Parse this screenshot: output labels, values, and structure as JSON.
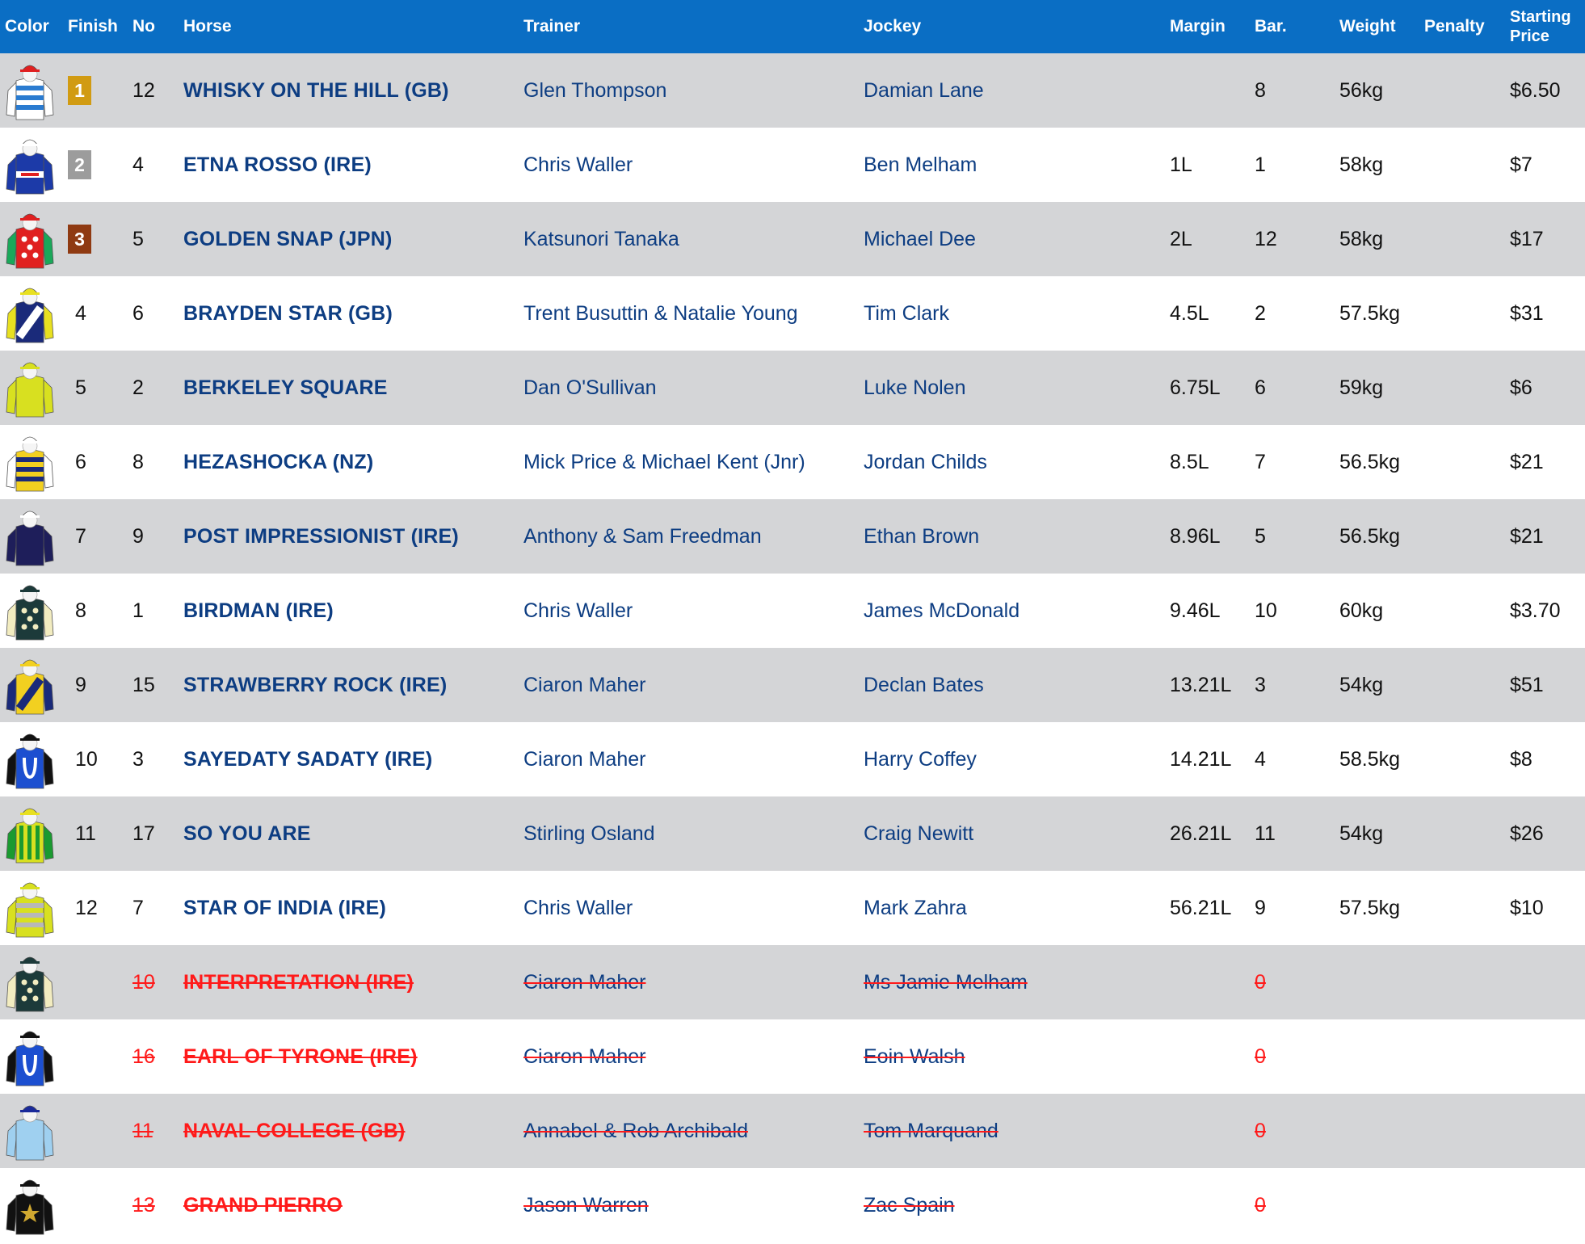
{
  "header": {
    "color": "Color",
    "finish": "Finish",
    "no": "No",
    "horse": "Horse",
    "trainer": "Trainer",
    "jockey": "Jockey",
    "margin": "Margin",
    "barrier": "Bar.",
    "weight": "Weight",
    "penalty": "Penalty",
    "starting_price_line1": "Starting",
    "starting_price_line2": "Price"
  },
  "colors": {
    "header_bg": "#0a6ec4",
    "row_grey": "#d4d5d7",
    "gold": "#d19b12",
    "silver": "#9c9c9c",
    "bronze": "#8f3a12",
    "scratched": "#ff1a1a",
    "link": "#0d3d82"
  },
  "rows": [
    {
      "finish": "1",
      "no": "12",
      "horse": "WHISKY ON THE HILL (GB)",
      "trainer": "Glen Thompson",
      "jockey": "Damian Lane",
      "margin": "",
      "barrier": "8",
      "weight": "56kg",
      "penalty": "",
      "sp": "$6.50",
      "scratched": false,
      "medal": "gold",
      "silk": {
        "icon": "silk-blue-white-hoops-icon",
        "body": "#ffffff",
        "stripe": "#2a7bd0",
        "pattern": "hoops",
        "cap": "#e02020",
        "sleeve": "#ffffff"
      }
    },
    {
      "finish": "2",
      "no": "4",
      "horse": "ETNA ROSSO (IRE)",
      "trainer": "Chris Waller",
      "jockey": "Ben Melham",
      "margin": "1L",
      "barrier": "1",
      "weight": "58kg",
      "penalty": "",
      "sp": "$7",
      "scratched": false,
      "medal": "silver",
      "silk": {
        "icon": "silk-navy-band-icon",
        "body": "#1c3aa8",
        "stripe": "#ffffff",
        "pattern": "band",
        "cap": "#ffffff",
        "sleeve": "#1c3aa8"
      }
    },
    {
      "finish": "3",
      "no": "5",
      "horse": "GOLDEN SNAP (JPN)",
      "trainer": "Katsunori Tanaka",
      "jockey": "Michael Dee",
      "margin": "2L",
      "barrier": "12",
      "weight": "58kg",
      "penalty": "",
      "sp": "$17",
      "scratched": false,
      "medal": "bronze",
      "silk": {
        "icon": "silk-red-white-spots-icon",
        "body": "#e02020",
        "stripe": "#ffffff",
        "pattern": "spots",
        "cap": "#e02020",
        "sleeve": "#1aa85a"
      }
    },
    {
      "finish": "4",
      "no": "6",
      "horse": "BRAYDEN STAR (GB)",
      "trainer": "Trent Busuttin & Natalie Young",
      "jockey": "Tim Clark",
      "margin": "4.5L",
      "barrier": "2",
      "weight": "57.5kg",
      "penalty": "",
      "sp": "$31",
      "scratched": false,
      "medal": "",
      "silk": {
        "icon": "silk-navy-white-sash-icon",
        "body": "#1a2a7a",
        "stripe": "#ffffff",
        "pattern": "sash",
        "cap": "#e8e020",
        "sleeve": "#e8e020"
      }
    },
    {
      "finish": "5",
      "no": "2",
      "horse": "BERKELEY SQUARE",
      "trainer": "Dan O'Sullivan",
      "jockey": "Luke Nolen",
      "margin": "6.75L",
      "barrier": "6",
      "weight": "59kg",
      "penalty": "",
      "sp": "$6",
      "scratched": false,
      "medal": "",
      "silk": {
        "icon": "silk-yellow-icon",
        "body": "#d8e020",
        "stripe": "#d8e020",
        "pattern": "plain",
        "cap": "#d8e020",
        "sleeve": "#d8e020"
      }
    },
    {
      "finish": "6",
      "no": "8",
      "horse": "HEZASHOCKA (NZ)",
      "trainer": "Mick Price & Michael Kent (Jnr)",
      "jockey": "Jordan Childs",
      "margin": "8.5L",
      "barrier": "7",
      "weight": "56.5kg",
      "penalty": "",
      "sp": "$21",
      "scratched": false,
      "medal": "",
      "silk": {
        "icon": "silk-navy-yellow-hoops-icon",
        "body": "#f2d020",
        "stripe": "#1a2a7a",
        "pattern": "hoops",
        "cap": "#ffffff",
        "sleeve": "#ffffff"
      }
    },
    {
      "finish": "7",
      "no": "9",
      "horse": "POST IMPRESSIONIST (IRE)",
      "trainer": "Anthony & Sam Freedman",
      "jockey": "Ethan Brown",
      "margin": "8.96L",
      "barrier": "5",
      "weight": "56.5kg",
      "penalty": "",
      "sp": "$21",
      "scratched": false,
      "medal": "",
      "silk": {
        "icon": "silk-navy-icon",
        "body": "#1e1e5a",
        "stripe": "#1e1e5a",
        "pattern": "plain",
        "cap": "#ffffff",
        "sleeve": "#1e1e5a"
      }
    },
    {
      "finish": "8",
      "no": "1",
      "horse": "BIRDMAN (IRE)",
      "trainer": "Chris Waller",
      "jockey": "James McDonald",
      "margin": "9.46L",
      "barrier": "10",
      "weight": "60kg",
      "penalty": "",
      "sp": "$3.70",
      "scratched": false,
      "medal": "",
      "silk": {
        "icon": "silk-green-cream-spots-icon",
        "body": "#1c3a3a",
        "stripe": "#f2ecc0",
        "pattern": "spots",
        "cap": "#1c3a3a",
        "sleeve": "#f2ecc0"
      }
    },
    {
      "finish": "9",
      "no": "15",
      "horse": "STRAWBERRY ROCK (IRE)",
      "trainer": "Ciaron Maher",
      "jockey": "Declan Bates",
      "margin": "13.21L",
      "barrier": "3",
      "weight": "54kg",
      "penalty": "",
      "sp": "$51",
      "scratched": false,
      "medal": "",
      "silk": {
        "icon": "silk-yellow-navy-sash-icon",
        "body": "#f2d020",
        "stripe": "#1a2a7a",
        "pattern": "sash",
        "cap": "#f2d020",
        "sleeve": "#1a2a7a"
      }
    },
    {
      "finish": "10",
      "no": "3",
      "horse": "SAYEDATY SADATY (IRE)",
      "trainer": "Ciaron Maher",
      "jockey": "Harry Coffey",
      "margin": "14.21L",
      "barrier": "4",
      "weight": "58.5kg",
      "penalty": "",
      "sp": "$8",
      "scratched": false,
      "medal": "",
      "silk": {
        "icon": "silk-blue-horseshoe-icon",
        "body": "#1c4fd0",
        "stripe": "#ffffff",
        "pattern": "horseshoe",
        "cap": "#111111",
        "sleeve": "#111111"
      }
    },
    {
      "finish": "11",
      "no": "17",
      "horse": "SO YOU ARE",
      "trainer": "Stirling Osland",
      "jockey": "Craig Newitt",
      "margin": "26.21L",
      "barrier": "11",
      "weight": "54kg",
      "penalty": "",
      "sp": "$26",
      "scratched": false,
      "medal": "",
      "silk": {
        "icon": "silk-green-yellow-stripes-icon",
        "body": "#d8e020",
        "stripe": "#1a9a30",
        "pattern": "stripes",
        "cap": "#e8e020",
        "sleeve": "#1a9a30"
      }
    },
    {
      "finish": "12",
      "no": "7",
      "horse": "STAR OF INDIA (IRE)",
      "trainer": "Chris Waller",
      "jockey": "Mark Zahra",
      "margin": "56.21L",
      "barrier": "9",
      "weight": "57.5kg",
      "penalty": "",
      "sp": "$10",
      "scratched": false,
      "medal": "",
      "silk": {
        "icon": "silk-yellow-grey-hoops-icon",
        "body": "#d8e020",
        "stripe": "#b8b8b8",
        "pattern": "hoops",
        "cap": "#d8e020",
        "sleeve": "#d8e020"
      }
    },
    {
      "finish": "",
      "no": "10",
      "horse": "INTERPRETATION (IRE)",
      "trainer": "Ciaron Maher",
      "jockey": "Ms Jamie Melham",
      "margin": "",
      "barrier": "0",
      "weight": "",
      "penalty": "",
      "sp": "",
      "scratched": true,
      "medal": "",
      "silk": {
        "icon": "silk-green-cream-spots-icon",
        "body": "#1c3a3a",
        "stripe": "#f2ecc0",
        "pattern": "spots",
        "cap": "#1c3a3a",
        "sleeve": "#f2ecc0"
      }
    },
    {
      "finish": "",
      "no": "16",
      "horse": "EARL OF TYRONE (IRE)",
      "trainer": "Ciaron Maher",
      "jockey": "Eoin Walsh",
      "margin": "",
      "barrier": "0",
      "weight": "",
      "penalty": "",
      "sp": "",
      "scratched": true,
      "medal": "",
      "silk": {
        "icon": "silk-blue-horseshoe-icon",
        "body": "#1c4fd0",
        "stripe": "#ffffff",
        "pattern": "horseshoe",
        "cap": "#111111",
        "sleeve": "#111111"
      }
    },
    {
      "finish": "",
      "no": "11",
      "horse": "NAVAL COLLEGE (GB)",
      "trainer": "Annabel & Rob Archibald",
      "jockey": "Tom Marquand",
      "margin": "",
      "barrier": "0",
      "weight": "",
      "penalty": "",
      "sp": "",
      "scratched": true,
      "medal": "",
      "silk": {
        "icon": "silk-light-blue-icon",
        "body": "#9fd0f0",
        "stripe": "#9fd0f0",
        "pattern": "plain",
        "cap": "#1a2a9a",
        "sleeve": "#9fd0f0"
      }
    },
    {
      "finish": "",
      "no": "13",
      "horse": "GRAND PIERRO",
      "trainer": "Jason Warren",
      "jockey": "Zac Spain",
      "margin": "",
      "barrier": "0",
      "weight": "",
      "penalty": "",
      "sp": "",
      "scratched": true,
      "medal": "",
      "silk": {
        "icon": "silk-black-gold-star-icon",
        "body": "#111111",
        "stripe": "#d0a830",
        "pattern": "star",
        "cap": "#111111",
        "sleeve": "#111111"
      }
    }
  ]
}
